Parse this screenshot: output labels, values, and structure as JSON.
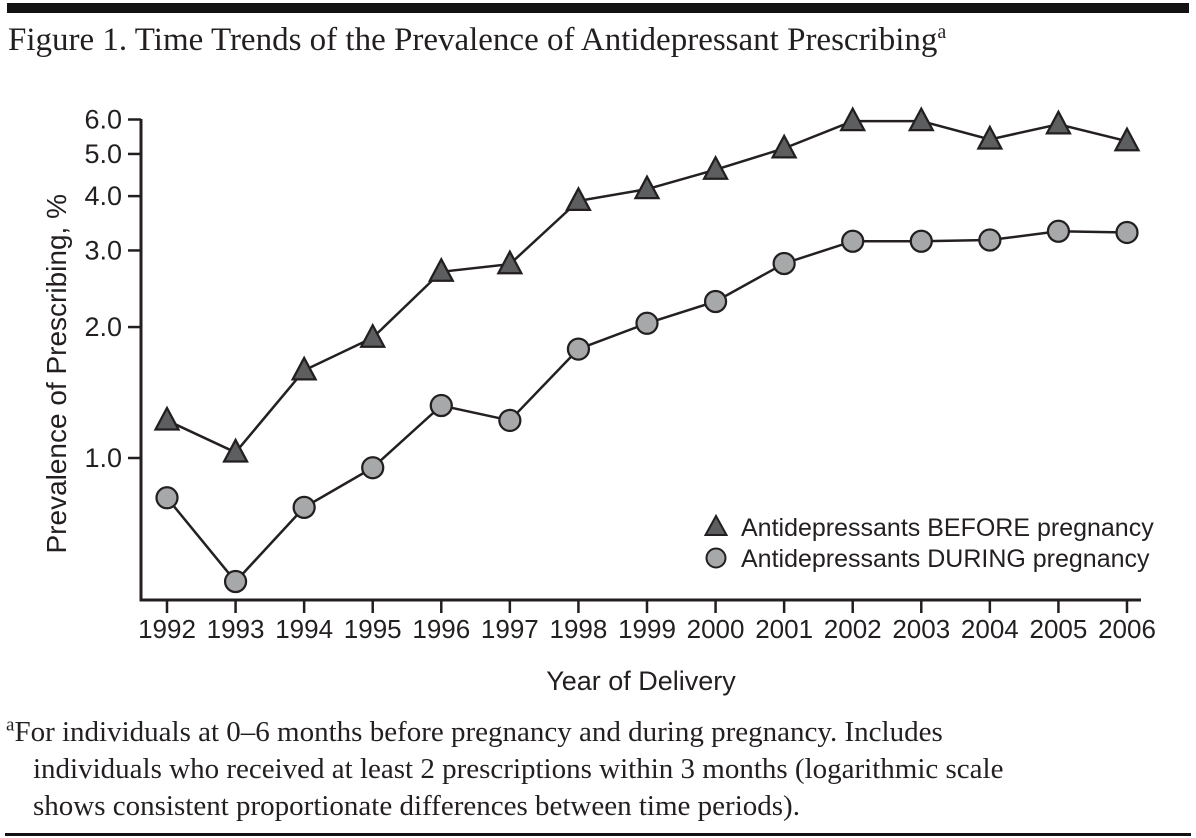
{
  "page": {
    "title": "Figure 1. Time Trends of the Prevalence of Antidepressant Prescribing",
    "title_superscript": "a"
  },
  "chart_data": {
    "type": "line",
    "title": "Figure 1. Time Trends of the Prevalence of Antidepressant Prescribing (a)",
    "xlabel": "Year of Delivery",
    "ylabel": "Prevalence of Prescribing, %",
    "yscale": "log",
    "ylim": [
      0.47,
      6.2
    ],
    "grid": false,
    "legend_position": "inside lower right",
    "ytick_labels": [
      "6.0",
      "5.0",
      "4.0",
      "3.0",
      "2.0",
      "1.0"
    ],
    "ytick_values": [
      6,
      5,
      4,
      3,
      2,
      1
    ],
    "x": [
      1992,
      1993,
      1994,
      1995,
      1996,
      1997,
      1998,
      1999,
      2000,
      2001,
      2002,
      2003,
      2004,
      2005,
      2006
    ],
    "series": [
      {
        "name": "Antidepressants BEFORE pregnancy",
        "marker": "triangle",
        "marker_color": "#5d5e60",
        "values": [
          1.22,
          1.03,
          1.59,
          1.89,
          2.68,
          2.79,
          3.9,
          4.15,
          4.6,
          5.15,
          5.95,
          5.95,
          5.4,
          5.85,
          5.35
        ]
      },
      {
        "name": "Antidepressants DURING pregnancy",
        "marker": "circle",
        "marker_color": "#a6a8aa",
        "values": [
          0.81,
          0.52,
          0.77,
          0.95,
          1.32,
          1.22,
          1.78,
          2.04,
          2.29,
          2.8,
          3.15,
          3.15,
          3.17,
          3.32,
          3.3
        ]
      }
    ],
    "line_color": "#242021"
  },
  "footnote": {
    "superscript": "a",
    "lines": [
      "For individuals at 0–6 months before pregnancy and during pregnancy. Includes",
      "individuals who received at least 2 prescriptions within 3 months (logarithmic scale",
      "shows consistent proportionate differences between time periods)."
    ]
  },
  "colors": {
    "ink": "#231f20",
    "rule": "#121212"
  }
}
